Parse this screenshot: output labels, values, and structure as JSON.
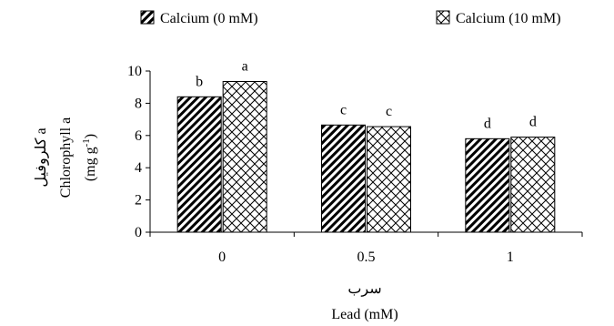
{
  "chart_data": {
    "type": "bar",
    "categories": [
      "0",
      "0.5",
      "1"
    ],
    "series": [
      {
        "name": "Calcium (0 mM)",
        "values": [
          8.4,
          6.65,
          5.8
        ],
        "letters": [
          "b",
          "c",
          "d"
        ],
        "pattern": "diagonal-stripes"
      },
      {
        "name": "Calcium (10 mM)",
        "values": [
          9.35,
          6.55,
          5.9
        ],
        "letters": [
          "a",
          "c",
          "d"
        ],
        "pattern": "crosshatch"
      }
    ],
    "ylim": [
      0,
      10
    ],
    "yticks": [
      0,
      2,
      4,
      6,
      8,
      10
    ],
    "xlabel_fa": "سرب",
    "xlabel": "Lead (mM)",
    "ylabel_fa": "کلروفیل a",
    "ylabel": "Chlorophyll a",
    "ylabel_unit": "(mg g-1)",
    "legend_position": "top",
    "grid": false
  }
}
